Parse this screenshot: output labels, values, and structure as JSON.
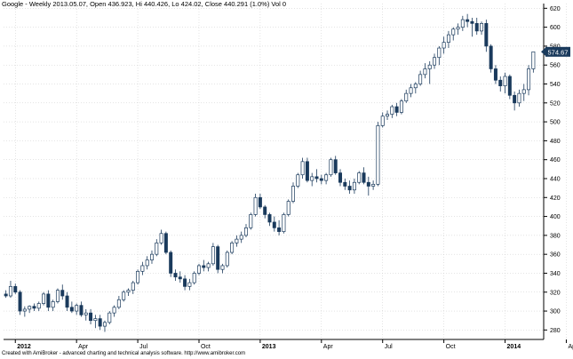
{
  "title": "Google - Weekly 2013.05.07, Open 436.923, Hi 440.426, Lo 424.02, Close 440.291 (1.0%) Vol 0",
  "footer": "Created with AmiBroker - advanced charting and technical analysis software. http://www.amibroker.com",
  "last_price_label": "574.67",
  "colors": {
    "up": "#ffffff",
    "down": "#1a3a5c",
    "outline": "#1a3a5c",
    "grid": "#c8c8c8",
    "label_bg": "#1a3a5c"
  },
  "chart_data": {
    "type": "candlestick",
    "title": "Google - Weekly 2013.05.07, Open 436.923, Hi 440.426, Lo 424.02, Close 440.291 (1.0%) Vol 0",
    "xlabel": "",
    "ylabel": "",
    "ylim": [
      270,
      625
    ],
    "yticks": [
      280,
      300,
      320,
      340,
      360,
      380,
      400,
      420,
      440,
      460,
      480,
      500,
      520,
      540,
      560,
      580,
      600,
      620
    ],
    "grid": true,
    "x_ticks": [
      {
        "label": "2012",
        "week": 2
      },
      {
        "label": "Apr",
        "week": 15
      },
      {
        "label": "Jul",
        "week": 28
      },
      {
        "label": "Oct",
        "week": 41
      },
      {
        "label": "2013",
        "week": 54
      },
      {
        "label": "Apr",
        "week": 67
      },
      {
        "label": "Jul",
        "week": 80
      },
      {
        "label": "Oct",
        "week": 93
      },
      {
        "label": "2014",
        "week": 106
      },
      {
        "label": "Apr",
        "week": 119
      }
    ],
    "bold_ticks": [
      "2012",
      "2013",
      "2014"
    ],
    "candles": [
      [
        318,
        322,
        314,
        316
      ],
      [
        316,
        332,
        314,
        326
      ],
      [
        326,
        329,
        318,
        320
      ],
      [
        320,
        322,
        296,
        300
      ],
      [
        300,
        305,
        294,
        302
      ],
      [
        302,
        306,
        298,
        305
      ],
      [
        305,
        308,
        300,
        303
      ],
      [
        303,
        310,
        300,
        308
      ],
      [
        308,
        320,
        306,
        318
      ],
      [
        318,
        322,
        300,
        304
      ],
      [
        304,
        312,
        300,
        310
      ],
      [
        310,
        324,
        308,
        322
      ],
      [
        322,
        328,
        312,
        316
      ],
      [
        316,
        320,
        300,
        304
      ],
      [
        304,
        310,
        298,
        300
      ],
      [
        300,
        308,
        296,
        306
      ],
      [
        306,
        310,
        294,
        296
      ],
      [
        296,
        302,
        290,
        298
      ],
      [
        298,
        302,
        286,
        290
      ],
      [
        290,
        296,
        282,
        292
      ],
      [
        292,
        296,
        280,
        284
      ],
      [
        284,
        290,
        278,
        288
      ],
      [
        288,
        300,
        286,
        298
      ],
      [
        298,
        306,
        294,
        304
      ],
      [
        304,
        316,
        302,
        312
      ],
      [
        312,
        322,
        310,
        320
      ],
      [
        320,
        324,
        316,
        322
      ],
      [
        322,
        332,
        318,
        330
      ],
      [
        330,
        344,
        328,
        342
      ],
      [
        342,
        352,
        338,
        348
      ],
      [
        348,
        358,
        344,
        354
      ],
      [
        354,
        364,
        350,
        360
      ],
      [
        360,
        376,
        358,
        372
      ],
      [
        372,
        386,
        370,
        382
      ],
      [
        382,
        384,
        360,
        362
      ],
      [
        362,
        364,
        336,
        340
      ],
      [
        340,
        344,
        332,
        336
      ],
      [
        336,
        342,
        330,
        334
      ],
      [
        334,
        338,
        322,
        326
      ],
      [
        326,
        334,
        322,
        330
      ],
      [
        330,
        342,
        328,
        340
      ],
      [
        340,
        350,
        338,
        348
      ],
      [
        348,
        354,
        342,
        346
      ],
      [
        346,
        352,
        342,
        350
      ],
      [
        350,
        372,
        348,
        368
      ],
      [
        368,
        370,
        340,
        344
      ],
      [
        344,
        350,
        340,
        348
      ],
      [
        348,
        364,
        346,
        362
      ],
      [
        362,
        374,
        360,
        372
      ],
      [
        372,
        380,
        368,
        376
      ],
      [
        376,
        384,
        372,
        380
      ],
      [
        380,
        392,
        378,
        388
      ],
      [
        388,
        404,
        386,
        402
      ],
      [
        402,
        424,
        400,
        420
      ],
      [
        420,
        424,
        408,
        410
      ],
      [
        410,
        412,
        398,
        402
      ],
      [
        402,
        404,
        390,
        394
      ],
      [
        394,
        400,
        384,
        388
      ],
      [
        388,
        396,
        380,
        384
      ],
      [
        384,
        404,
        382,
        402
      ],
      [
        402,
        418,
        400,
        416
      ],
      [
        416,
        436,
        414,
        432
      ],
      [
        432,
        446,
        430,
        444
      ],
      [
        444,
        462,
        440,
        458
      ],
      [
        458,
        462,
        436,
        438
      ],
      [
        438,
        446,
        432,
        442
      ],
      [
        442,
        450,
        436,
        440
      ],
      [
        440,
        444,
        434,
        438
      ],
      [
        438,
        446,
        434,
        444
      ],
      [
        444,
        462,
        442,
        460
      ],
      [
        460,
        464,
        444,
        446
      ],
      [
        446,
        450,
        432,
        436
      ],
      [
        436,
        440,
        428,
        432
      ],
      [
        432,
        438,
        424,
        428
      ],
      [
        428,
        440,
        424,
        436
      ],
      [
        436,
        448,
        434,
        446
      ],
      [
        446,
        452,
        434,
        436
      ],
      [
        436,
        442,
        422,
        432
      ],
      [
        432,
        438,
        428,
        434
      ],
      [
        434,
        500,
        432,
        496
      ],
      [
        496,
        510,
        494,
        506
      ],
      [
        506,
        512,
        502,
        508
      ],
      [
        508,
        518,
        504,
        516
      ],
      [
        516,
        520,
        506,
        510
      ],
      [
        510,
        524,
        508,
        522
      ],
      [
        522,
        534,
        520,
        530
      ],
      [
        530,
        540,
        526,
        536
      ],
      [
        536,
        542,
        530,
        540
      ],
      [
        540,
        554,
        538,
        550
      ],
      [
        550,
        562,
        546,
        556
      ],
      [
        556,
        564,
        540,
        560
      ],
      [
        560,
        572,
        556,
        568
      ],
      [
        568,
        580,
        560,
        578
      ],
      [
        578,
        590,
        572,
        584
      ],
      [
        584,
        596,
        578,
        592
      ],
      [
        592,
        600,
        586,
        598
      ],
      [
        598,
        604,
        592,
        600
      ],
      [
        600,
        612,
        596,
        608
      ],
      [
        608,
        614,
        600,
        606
      ],
      [
        606,
        610,
        590,
        604
      ],
      [
        604,
        610,
        592,
        596
      ],
      [
        596,
        606,
        592,
        604
      ],
      [
        604,
        608,
        574,
        580
      ],
      [
        580,
        582,
        552,
        556
      ],
      [
        556,
        560,
        540,
        544
      ],
      [
        544,
        548,
        532,
        538
      ],
      [
        538,
        552,
        530,
        548
      ],
      [
        548,
        550,
        524,
        528
      ],
      [
        528,
        532,
        512,
        520
      ],
      [
        520,
        534,
        516,
        530
      ],
      [
        530,
        540,
        522,
        534
      ],
      [
        534,
        560,
        528,
        556
      ],
      [
        556,
        574,
        552,
        574
      ]
    ]
  }
}
